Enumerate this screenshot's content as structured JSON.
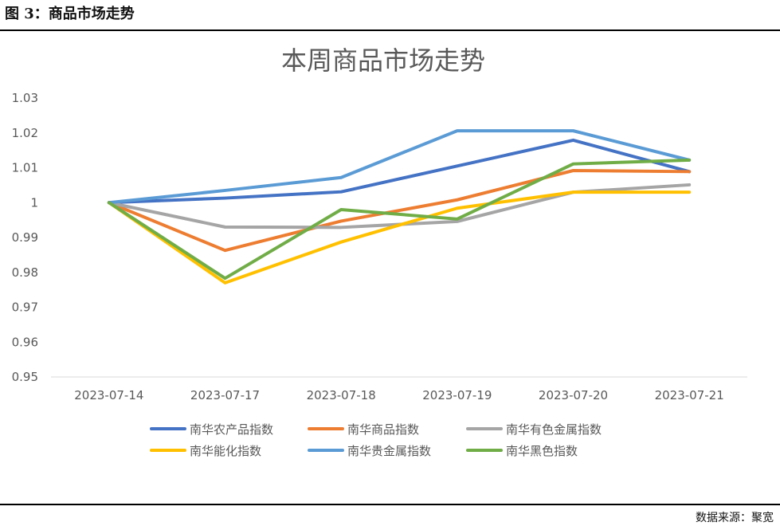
{
  "header": {
    "caption": "图 3：商品市场走势"
  },
  "footer": {
    "source": "数据来源：聚宽"
  },
  "chart_data": {
    "type": "line",
    "title": "本周商品市场走势",
    "x": [
      "2023-07-14",
      "2023-07-17",
      "2023-07-18",
      "2023-07-19",
      "2023-07-20",
      "2023-07-21"
    ],
    "ylim": [
      0.95,
      1.03
    ],
    "yticks": [
      "0.95",
      "0.96",
      "0.97",
      "0.98",
      "0.99",
      "1",
      "1.01",
      "1.02",
      "1.03"
    ],
    "grid": false,
    "legend": "bottom",
    "series": [
      {
        "name": "南华农产品指数",
        "color": "#4472C4",
        "values": [
          1.0,
          1.0013,
          1.0031,
          1.0105,
          1.0179,
          1.0089
        ]
      },
      {
        "name": "南华商品指数",
        "color": "#ED7D31",
        "values": [
          1.0,
          0.9863,
          0.9947,
          1.0008,
          1.0092,
          1.0089
        ]
      },
      {
        "name": "南华有色金属指数",
        "color": "#A5A5A5",
        "values": [
          1.0,
          0.993,
          0.9929,
          0.9946,
          1.003,
          1.0051
        ]
      },
      {
        "name": "南华能化指数",
        "color": "#FFC000",
        "values": [
          1.0,
          0.977,
          0.9887,
          0.9984,
          1.003,
          1.003
        ]
      },
      {
        "name": "南华贵金属指数",
        "color": "#5B9BD5",
        "values": [
          1.0,
          1.0035,
          1.0072,
          1.0206,
          1.0206,
          1.0122
        ]
      },
      {
        "name": "南华黑色指数",
        "color": "#70AD47",
        "values": [
          1.0,
          0.9783,
          0.998,
          0.9953,
          1.0111,
          1.0122
        ]
      }
    ]
  }
}
